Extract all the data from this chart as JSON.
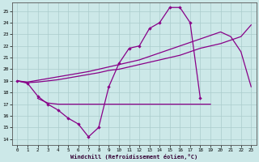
{
  "xlabel": "Windchill (Refroidissement éolien,°C)",
  "bg_color": "#cce8e8",
  "line_color": "#880088",
  "grid_color": "#aacccc",
  "xlim": [
    -0.5,
    23.5
  ],
  "ylim": [
    13.5,
    25.7
  ],
  "yticks": [
    14,
    15,
    16,
    17,
    18,
    19,
    20,
    21,
    22,
    23,
    24,
    25
  ],
  "xticks": [
    0,
    1,
    2,
    3,
    4,
    5,
    6,
    7,
    8,
    9,
    10,
    11,
    12,
    13,
    14,
    15,
    16,
    17,
    18,
    19,
    20,
    21,
    22,
    23
  ],
  "curve1_x": [
    0,
    1,
    2,
    3,
    4,
    5,
    6,
    7,
    8,
    9,
    10,
    11,
    12,
    13,
    14,
    15,
    16,
    17,
    18
  ],
  "curve1_y": [
    19,
    18.8,
    17.7,
    17.0,
    16.5,
    15.8,
    15.3,
    14.2,
    15.0,
    18.5,
    20.5,
    21.8,
    22.0,
    23.5,
    24.0,
    25.3,
    25.3,
    24.0,
    17.5
  ],
  "diag1_x": [
    0,
    1,
    2,
    3,
    4,
    5,
    6,
    7,
    8,
    9,
    10,
    11,
    12,
    13,
    14,
    15,
    16,
    17,
    18,
    19,
    20,
    21,
    22,
    23
  ],
  "diag1_y": [
    19,
    18.85,
    18.9,
    19.0,
    19.1,
    19.25,
    19.4,
    19.55,
    19.7,
    19.9,
    20.0,
    20.2,
    20.4,
    20.6,
    20.8,
    21.0,
    21.2,
    21.5,
    21.8,
    22.0,
    22.2,
    22.5,
    22.8,
    23.8
  ],
  "diag2_x": [
    0,
    1,
    2,
    3,
    4,
    5,
    6,
    7,
    8,
    9,
    10,
    11,
    12,
    13,
    14,
    15,
    16,
    17,
    18,
    19,
    20,
    21,
    22,
    23
  ],
  "diag2_y": [
    19,
    18.9,
    19.05,
    19.2,
    19.35,
    19.5,
    19.65,
    19.8,
    20.0,
    20.2,
    20.4,
    20.6,
    20.8,
    21.1,
    21.4,
    21.7,
    22.0,
    22.3,
    22.6,
    22.9,
    23.2,
    22.8,
    21.5,
    18.5
  ],
  "flat_x": [
    2,
    3,
    4,
    5,
    6,
    7,
    8,
    9,
    10,
    11,
    12,
    13,
    14,
    15,
    16,
    17,
    18,
    19
  ],
  "flat_y": [
    17.5,
    17.1,
    17.0,
    17.0,
    17.0,
    17.0,
    17.0,
    17.0,
    17.0,
    17.0,
    17.0,
    17.0,
    17.0,
    17.0,
    17.0,
    17.0,
    17.0,
    17.0
  ]
}
